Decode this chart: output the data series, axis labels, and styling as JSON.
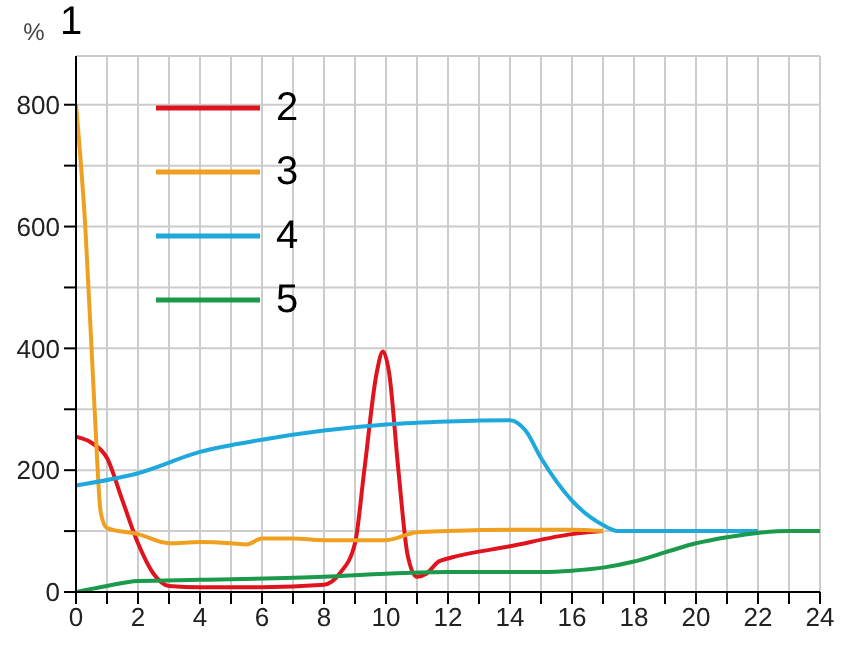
{
  "chart_data": {
    "type": "line",
    "title": "1",
    "ylabel": "%",
    "xlim": [
      0,
      24
    ],
    "ylim": [
      0,
      880
    ],
    "xticks": [
      0,
      {
        "value": 1,
        "label": null
      },
      2,
      {
        "value": 3,
        "label": null
      },
      4,
      {
        "value": 5,
        "label": null
      },
      6,
      {
        "value": 7,
        "label": null
      },
      8,
      {
        "value": 9,
        "label": null
      },
      10,
      {
        "value": 11,
        "label": null
      },
      12,
      {
        "value": 13,
        "label": null
      },
      14,
      {
        "value": 15,
        "label": null
      },
      16,
      {
        "value": 17,
        "label": null
      },
      18,
      {
        "value": 19,
        "label": null
      },
      20,
      {
        "value": 21,
        "label": null
      },
      22,
      {
        "value": 23,
        "label": null
      },
      24
    ],
    "yticks": [
      0,
      {
        "value": 100,
        "label": null
      },
      200,
      {
        "value": 300,
        "label": null
      },
      400,
      {
        "value": 500,
        "label": null
      },
      600,
      {
        "value": 700,
        "label": null
      },
      800
    ],
    "grid": true,
    "legend": "top left",
    "marker": "none",
    "line_style": "solid",
    "series": [
      {
        "name": "2",
        "color": "#e0141e",
        "x": [
          0,
          0.5,
          1,
          1.5,
          2,
          2.5,
          3,
          4,
          6,
          8,
          8.5,
          9,
          9.3,
          9.7,
          9.9,
          10.1,
          10.4,
          10.7,
          11,
          11.3,
          11.7,
          12,
          14,
          16,
          17
        ],
        "values": [
          255,
          245,
          220,
          150,
          80,
          30,
          10,
          8,
          8,
          12,
          30,
          80,
          200,
          360,
          395,
          360,
          200,
          60,
          25,
          30,
          50,
          55,
          75,
          95,
          100
        ]
      },
      {
        "name": "3",
        "color": "#f0a020",
        "x": [
          0,
          0.3,
          0.6,
          0.8,
          1,
          2,
          3,
          4,
          5,
          5.5,
          6,
          7,
          8,
          9,
          10,
          11,
          12,
          14,
          16,
          17
        ],
        "values": [
          800,
          600,
          300,
          130,
          105,
          95,
          80,
          82,
          80,
          78,
          88,
          88,
          85,
          85,
          85,
          98,
          100,
          102,
          102,
          100
        ]
      },
      {
        "name": "4",
        "color": "#1ea8dc",
        "x": [
          0,
          2,
          4,
          6,
          8,
          10,
          12,
          14,
          14.5,
          15,
          16,
          17,
          17.5,
          20,
          22
        ],
        "values": [
          175,
          195,
          230,
          250,
          265,
          275,
          280,
          282,
          265,
          220,
          150,
          110,
          100,
          100,
          100
        ]
      },
      {
        "name": "5",
        "color": "#1a9a4a",
        "x": [
          0,
          1,
          2,
          4,
          8,
          10,
          12,
          15,
          16,
          17,
          18,
          19,
          20,
          21,
          22,
          23,
          24
        ],
        "values": [
          0,
          10,
          18,
          20,
          25,
          30,
          33,
          33,
          35,
          40,
          50,
          65,
          80,
          90,
          97,
          100,
          100
        ]
      }
    ]
  }
}
